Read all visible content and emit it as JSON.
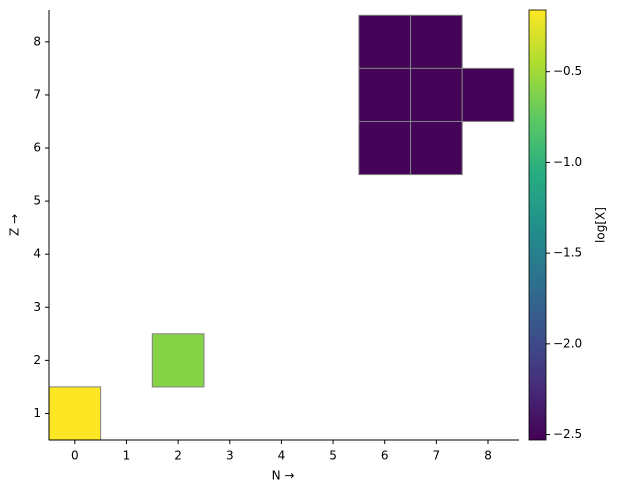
{
  "chart_data": {
    "type": "heatmap",
    "x": [
      0,
      2,
      6,
      7,
      6,
      7,
      8,
      6,
      7
    ],
    "y": [
      1,
      2,
      8,
      8,
      7,
      7,
      7,
      6,
      6
    ],
    "values": [
      -0.16,
      -0.6,
      -2.5,
      -2.5,
      -2.5,
      -2.5,
      -2.5,
      -2.5,
      -2.5
    ],
    "xlabel": "N →",
    "ylabel": "Z →",
    "colorbar_label": "log[X]",
    "colormap": "viridis",
    "xlim": [
      -0.5,
      8.6
    ],
    "ylim": [
      0.5,
      8.6
    ],
    "clim": [
      -2.53,
      -0.16
    ],
    "xticks": [
      0,
      1,
      2,
      3,
      4,
      5,
      6,
      7,
      8
    ],
    "yticks": [
      1,
      2,
      3,
      4,
      5,
      6,
      7,
      8
    ],
    "cticks": [
      {
        "value": -0.5,
        "label": "−0.5"
      },
      {
        "value": -1.0,
        "label": "−1.0"
      },
      {
        "value": -1.5,
        "label": "−1.5"
      },
      {
        "value": -2.0,
        "label": "−2.0"
      },
      {
        "value": -2.5,
        "label": "−2.5"
      }
    ]
  }
}
